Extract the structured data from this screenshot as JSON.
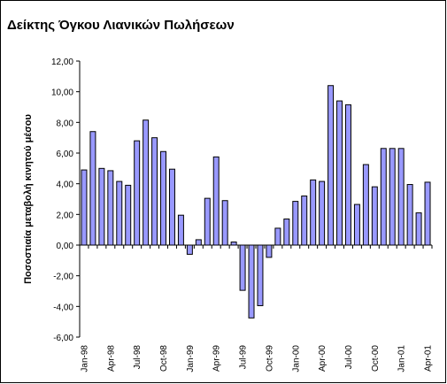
{
  "chart_data": {
    "type": "bar",
    "title": "Δείκτης Όγκου Λιανικών Πωλήσεων",
    "y_label": "Ποσοστιαία μεταβολή κινητού μέσου",
    "categories": [
      "Jan-98",
      null,
      null,
      "Apr-98",
      null,
      null,
      "Jul-98",
      null,
      null,
      "Oct-98",
      null,
      null,
      "Jan-99",
      null,
      null,
      "Apr-99",
      null,
      null,
      "Jul-99",
      null,
      null,
      "Oct-99",
      null,
      null,
      "Jan-00",
      null,
      null,
      "Apr-00",
      null,
      null,
      "Jul-00",
      null,
      null,
      "Oct-00",
      null,
      null,
      "Jan-01",
      null,
      null,
      "Apr-01"
    ],
    "values": [
      4.9,
      7.4,
      5.0,
      4.85,
      4.15,
      3.9,
      6.8,
      8.15,
      7.0,
      6.1,
      4.95,
      1.95,
      -0.6,
      0.35,
      3.05,
      5.75,
      2.9,
      0.2,
      -2.95,
      -4.75,
      -3.95,
      -0.8,
      1.1,
      1.7,
      2.85,
      3.2,
      4.25,
      4.15,
      10.4,
      9.4,
      9.15,
      2.65,
      5.25,
      3.8,
      6.3,
      6.3,
      6.3,
      3.95,
      2.1,
      4.1
    ],
    "color": "#9999ff",
    "ylim": [
      -6,
      12
    ],
    "yticks": [
      {
        "value": 12,
        "label": "12,00"
      },
      {
        "value": 10,
        "label": "10,00"
      },
      {
        "value": 8,
        "label": "8,00"
      },
      {
        "value": 6,
        "label": "6,00"
      },
      {
        "value": 4,
        "label": "4,00"
      },
      {
        "value": 2,
        "label": "2,00"
      },
      {
        "value": 0,
        "label": "0,00"
      },
      {
        "value": -2,
        "label": "-2,00"
      },
      {
        "value": -4,
        "label": "-4,00"
      },
      {
        "value": -6,
        "label": "-6,00"
      }
    ],
    "grid": false
  }
}
